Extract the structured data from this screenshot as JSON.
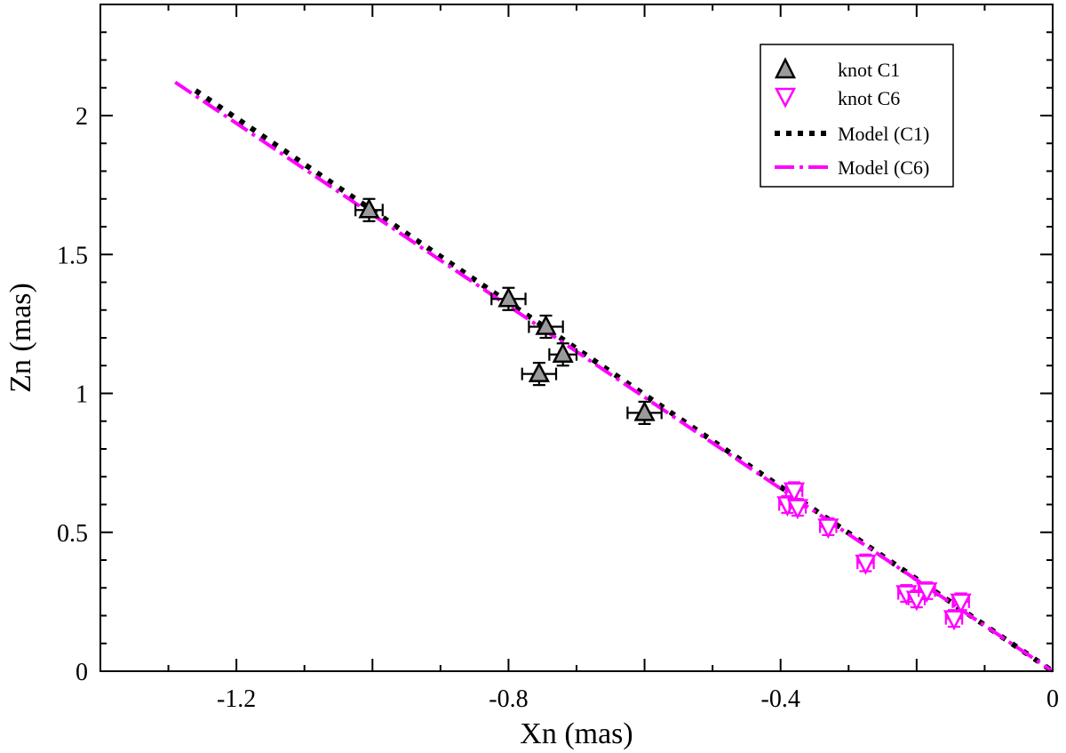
{
  "chart_data": {
    "type": "scatter",
    "xlabel": "Xn (mas)",
    "ylabel": "Zn (mas)",
    "xlim": [
      -1.4,
      0
    ],
    "ylim": [
      0,
      2.4
    ],
    "x_ticks": [
      "-1.2",
      "-0.8",
      "-0.4",
      "0"
    ],
    "y_ticks": [
      "0",
      "0.5",
      "1",
      "1.5",
      "2"
    ],
    "legend_position": "top-right",
    "grid": false,
    "series": [
      {
        "name": "knot C1",
        "kind": "points",
        "marker": "triangle-up",
        "color": "#000000",
        "fill": "#9a9a9a",
        "points": [
          {
            "x": -1.005,
            "y": 1.66,
            "xerr": 0.02,
            "yerr": 0.04
          },
          {
            "x": -0.8,
            "y": 1.34,
            "xerr": 0.025,
            "yerr": 0.04
          },
          {
            "x": -0.745,
            "y": 1.24,
            "xerr": 0.025,
            "yerr": 0.04
          },
          {
            "x": -0.72,
            "y": 1.14,
            "xerr": 0.02,
            "yerr": 0.04
          },
          {
            "x": -0.755,
            "y": 1.07,
            "xerr": 0.025,
            "yerr": 0.04
          },
          {
            "x": -0.6,
            "y": 0.93,
            "xerr": 0.025,
            "yerr": 0.04
          }
        ]
      },
      {
        "name": "knot C6",
        "kind": "points",
        "marker": "triangle-down",
        "color": "#ff00ff",
        "points": [
          {
            "x": -0.39,
            "y": 0.6,
            "xerr": 0.012,
            "yerr": 0.03
          },
          {
            "x": -0.38,
            "y": 0.65,
            "xerr": 0.012,
            "yerr": 0.03
          },
          {
            "x": -0.375,
            "y": 0.59,
            "xerr": 0.012,
            "yerr": 0.03
          },
          {
            "x": -0.33,
            "y": 0.52,
            "xerr": 0.012,
            "yerr": 0.03
          },
          {
            "x": -0.275,
            "y": 0.39,
            "xerr": 0.012,
            "yerr": 0.03
          },
          {
            "x": -0.215,
            "y": 0.28,
            "xerr": 0.012,
            "yerr": 0.03
          },
          {
            "x": -0.2,
            "y": 0.26,
            "xerr": 0.012,
            "yerr": 0.03
          },
          {
            "x": -0.185,
            "y": 0.29,
            "xerr": 0.012,
            "yerr": 0.03
          },
          {
            "x": -0.145,
            "y": 0.19,
            "xerr": 0.012,
            "yerr": 0.03
          },
          {
            "x": -0.135,
            "y": 0.25,
            "xerr": 0.012,
            "yerr": 0.03
          }
        ]
      },
      {
        "name": "Model (C1)",
        "kind": "line",
        "style": "dotted",
        "color": "#000000",
        "points": [
          {
            "x": -1.26,
            "y": 2.09
          },
          {
            "x": 0.0,
            "y": 0.0
          }
        ]
      },
      {
        "name": "Model (C6)",
        "kind": "line",
        "style": "dash-dot",
        "color": "#ff00ff",
        "points": [
          {
            "x": -1.29,
            "y": 2.12
          },
          {
            "x": 0.0,
            "y": 0.0
          }
        ]
      }
    ]
  }
}
